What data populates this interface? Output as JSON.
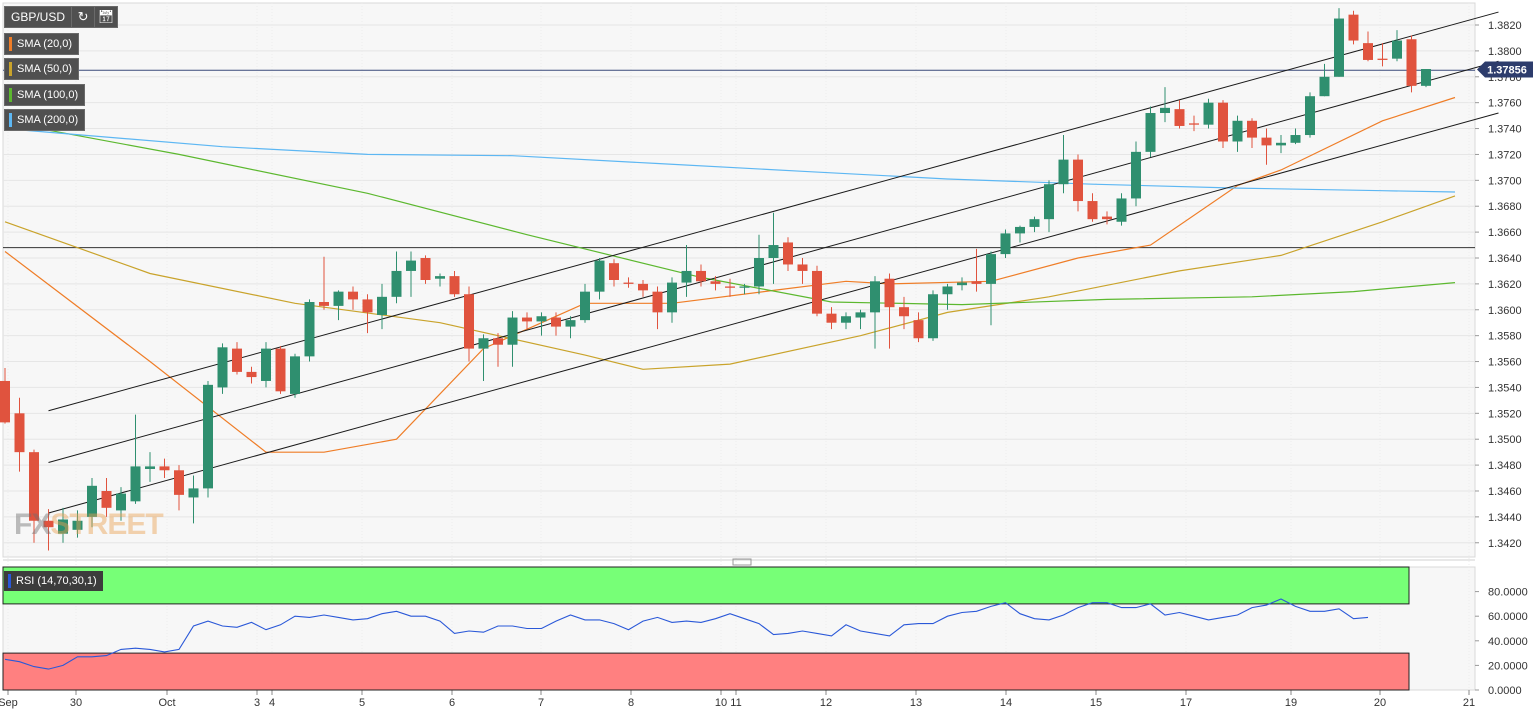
{
  "toolbar": {
    "symbol": "GBP/USD",
    "refresh_icon": "refresh-icon",
    "calendar_icon": "calendar-icon"
  },
  "indicators": [
    {
      "label": "SMA (20,0)",
      "color": "#ef7d27"
    },
    {
      "label": "SMA (50,0)",
      "color": "#c9a32b"
    },
    {
      "label": "SMA (100,0)",
      "color": "#5cb82f"
    },
    {
      "label": "SMA (200,0)",
      "color": "#5db7f3"
    }
  ],
  "watermark": {
    "fx": "FX",
    "street": "STREET"
  },
  "price_tag": "1.37856",
  "chart_data": [
    {
      "type": "candlestick",
      "y_ticks": [
        "1.3820",
        "1.3800",
        "1.3780",
        "1.3760",
        "1.3740",
        "1.3720",
        "1.3700",
        "1.3680",
        "1.3660",
        "1.3640",
        "1.3620",
        "1.3600",
        "1.3580",
        "1.3560",
        "1.3540",
        "1.3520",
        "1.3500",
        "1.3480",
        "1.3460",
        "1.3440",
        "1.3420"
      ],
      "ylim": [
        1.3409,
        1.3837
      ],
      "x_labels": [
        "Sep",
        "30",
        "Oct",
        "3",
        "4",
        "5",
        "6",
        "7",
        "8",
        "10",
        "11",
        "12",
        "13",
        "14",
        "15",
        "17",
        "19",
        "20",
        "21"
      ],
      "candles": [
        {
          "o": 1.3545,
          "h": 1.3555,
          "l": 1.3512,
          "c": 1.3513
        },
        {
          "o": 1.352,
          "h": 1.3532,
          "l": 1.3475,
          "c": 1.349
        },
        {
          "o": 1.349,
          "h": 1.3492,
          "l": 1.342,
          "c": 1.3437
        },
        {
          "o": 1.3437,
          "h": 1.3446,
          "l": 1.3414,
          "c": 1.3432
        },
        {
          "o": 1.3427,
          "h": 1.3447,
          "l": 1.342,
          "c": 1.3438
        },
        {
          "o": 1.343,
          "h": 1.3445,
          "l": 1.3424,
          "c": 1.3437
        },
        {
          "o": 1.344,
          "h": 1.347,
          "l": 1.3432,
          "c": 1.3464
        },
        {
          "o": 1.346,
          "h": 1.347,
          "l": 1.344,
          "c": 1.3447
        },
        {
          "o": 1.3445,
          "h": 1.3463,
          "l": 1.3437,
          "c": 1.3458
        },
        {
          "o": 1.3452,
          "h": 1.3519,
          "l": 1.345,
          "c": 1.3479
        },
        {
          "o": 1.3477,
          "h": 1.349,
          "l": 1.3467,
          "c": 1.3479
        },
        {
          "o": 1.3479,
          "h": 1.3485,
          "l": 1.347,
          "c": 1.3476
        },
        {
          "o": 1.3476,
          "h": 1.348,
          "l": 1.3445,
          "c": 1.3457
        },
        {
          "o": 1.3455,
          "h": 1.3472,
          "l": 1.3435,
          "c": 1.3462
        },
        {
          "o": 1.3462,
          "h": 1.3545,
          "l": 1.3455,
          "c": 1.3542
        },
        {
          "o": 1.354,
          "h": 1.3574,
          "l": 1.3535,
          "c": 1.3571
        },
        {
          "o": 1.357,
          "h": 1.3575,
          "l": 1.355,
          "c": 1.3552
        },
        {
          "o": 1.3552,
          "h": 1.3556,
          "l": 1.3543,
          "c": 1.3548
        },
        {
          "o": 1.3545,
          "h": 1.3575,
          "l": 1.354,
          "c": 1.357
        },
        {
          "o": 1.357,
          "h": 1.3572,
          "l": 1.3535,
          "c": 1.3537
        },
        {
          "o": 1.3535,
          "h": 1.3566,
          "l": 1.3532,
          "c": 1.3564
        },
        {
          "o": 1.3564,
          "h": 1.3608,
          "l": 1.356,
          "c": 1.3606
        },
        {
          "o": 1.3606,
          "h": 1.3641,
          "l": 1.36,
          "c": 1.3603
        },
        {
          "o": 1.3603,
          "h": 1.3615,
          "l": 1.3592,
          "c": 1.3614
        },
        {
          "o": 1.3614,
          "h": 1.3618,
          "l": 1.36,
          "c": 1.3608
        },
        {
          "o": 1.3608,
          "h": 1.3612,
          "l": 1.3582,
          "c": 1.3598
        },
        {
          "o": 1.3596,
          "h": 1.362,
          "l": 1.3585,
          "c": 1.361
        },
        {
          "o": 1.361,
          "h": 1.3645,
          "l": 1.3605,
          "c": 1.363
        },
        {
          "o": 1.363,
          "h": 1.3645,
          "l": 1.361,
          "c": 1.3638
        },
        {
          "o": 1.364,
          "h": 1.3642,
          "l": 1.362,
          "c": 1.3623
        },
        {
          "o": 1.3624,
          "h": 1.3628,
          "l": 1.3618,
          "c": 1.3626
        },
        {
          "o": 1.3626,
          "h": 1.363,
          "l": 1.361,
          "c": 1.3612
        },
        {
          "o": 1.3612,
          "h": 1.3618,
          "l": 1.356,
          "c": 1.357
        },
        {
          "o": 1.357,
          "h": 1.3581,
          "l": 1.3545,
          "c": 1.3578
        },
        {
          "o": 1.3578,
          "h": 1.3582,
          "l": 1.3556,
          "c": 1.3573
        },
        {
          "o": 1.3573,
          "h": 1.3599,
          "l": 1.3556,
          "c": 1.3594
        },
        {
          "o": 1.3594,
          "h": 1.3598,
          "l": 1.3585,
          "c": 1.3591
        },
        {
          "o": 1.3591,
          "h": 1.3598,
          "l": 1.358,
          "c": 1.3595
        },
        {
          "o": 1.3594,
          "h": 1.3598,
          "l": 1.358,
          "c": 1.3587
        },
        {
          "o": 1.3587,
          "h": 1.3595,
          "l": 1.3578,
          "c": 1.3592
        },
        {
          "o": 1.3592,
          "h": 1.362,
          "l": 1.359,
          "c": 1.3614
        },
        {
          "o": 1.3614,
          "h": 1.364,
          "l": 1.3608,
          "c": 1.3638
        },
        {
          "o": 1.3636,
          "h": 1.3639,
          "l": 1.3618,
          "c": 1.3623
        },
        {
          "o": 1.3621,
          "h": 1.3625,
          "l": 1.3617,
          "c": 1.362
        },
        {
          "o": 1.362,
          "h": 1.3623,
          "l": 1.361,
          "c": 1.3615
        },
        {
          "o": 1.3614,
          "h": 1.3618,
          "l": 1.3585,
          "c": 1.3598
        },
        {
          "o": 1.3598,
          "h": 1.3625,
          "l": 1.359,
          "c": 1.3621
        },
        {
          "o": 1.3621,
          "h": 1.365,
          "l": 1.361,
          "c": 1.363
        },
        {
          "o": 1.363,
          "h": 1.3635,
          "l": 1.3618,
          "c": 1.3622
        },
        {
          "o": 1.3622,
          "h": 1.3626,
          "l": 1.3615,
          "c": 1.362
        },
        {
          "o": 1.3618,
          "h": 1.3624,
          "l": 1.361,
          "c": 1.3617
        },
        {
          "o": 1.3617,
          "h": 1.362,
          "l": 1.3612,
          "c": 1.3618
        },
        {
          "o": 1.3618,
          "h": 1.3658,
          "l": 1.3612,
          "c": 1.364
        },
        {
          "o": 1.364,
          "h": 1.3675,
          "l": 1.362,
          "c": 1.365
        },
        {
          "o": 1.3652,
          "h": 1.3656,
          "l": 1.363,
          "c": 1.3635
        },
        {
          "o": 1.3635,
          "h": 1.364,
          "l": 1.362,
          "c": 1.363
        },
        {
          "o": 1.363,
          "h": 1.3634,
          "l": 1.3595,
          "c": 1.3597
        },
        {
          "o": 1.3597,
          "h": 1.3602,
          "l": 1.3585,
          "c": 1.359
        },
        {
          "o": 1.359,
          "h": 1.3598,
          "l": 1.3585,
          "c": 1.3595
        },
        {
          "o": 1.3594,
          "h": 1.36,
          "l": 1.3585,
          "c": 1.3598
        },
        {
          "o": 1.3598,
          "h": 1.3626,
          "l": 1.357,
          "c": 1.3622
        },
        {
          "o": 1.3624,
          "h": 1.3628,
          "l": 1.357,
          "c": 1.3602
        },
        {
          "o": 1.3602,
          "h": 1.361,
          "l": 1.3585,
          "c": 1.3595
        },
        {
          "o": 1.3592,
          "h": 1.3598,
          "l": 1.3575,
          "c": 1.3578
        },
        {
          "o": 1.3578,
          "h": 1.3615,
          "l": 1.3576,
          "c": 1.3612
        },
        {
          "o": 1.3612,
          "h": 1.362,
          "l": 1.36,
          "c": 1.3618
        },
        {
          "o": 1.3619,
          "h": 1.3625,
          "l": 1.3615,
          "c": 1.3621
        },
        {
          "o": 1.3622,
          "h": 1.3647,
          "l": 1.3614,
          "c": 1.362
        },
        {
          "o": 1.362,
          "h": 1.3645,
          "l": 1.3588,
          "c": 1.3643
        },
        {
          "o": 1.3643,
          "h": 1.3662,
          "l": 1.364,
          "c": 1.3659
        },
        {
          "o": 1.3659,
          "h": 1.3665,
          "l": 1.3652,
          "c": 1.3664
        },
        {
          "o": 1.3664,
          "h": 1.3672,
          "l": 1.366,
          "c": 1.367
        },
        {
          "o": 1.367,
          "h": 1.37,
          "l": 1.366,
          "c": 1.3697
        },
        {
          "o": 1.3697,
          "h": 1.3735,
          "l": 1.369,
          "c": 1.3716
        },
        {
          "o": 1.3716,
          "h": 1.372,
          "l": 1.3676,
          "c": 1.3684
        },
        {
          "o": 1.3684,
          "h": 1.369,
          "l": 1.3668,
          "c": 1.367
        },
        {
          "o": 1.3672,
          "h": 1.3676,
          "l": 1.3666,
          "c": 1.367
        },
        {
          "o": 1.3668,
          "h": 1.369,
          "l": 1.3665,
          "c": 1.3686
        },
        {
          "o": 1.3686,
          "h": 1.373,
          "l": 1.368,
          "c": 1.3722
        },
        {
          "o": 1.3722,
          "h": 1.3757,
          "l": 1.3718,
          "c": 1.3752
        },
        {
          "o": 1.3752,
          "h": 1.3772,
          "l": 1.3745,
          "c": 1.3756
        },
        {
          "o": 1.3755,
          "h": 1.3762,
          "l": 1.374,
          "c": 1.3742
        },
        {
          "o": 1.3744,
          "h": 1.375,
          "l": 1.3738,
          "c": 1.3743
        },
        {
          "o": 1.3743,
          "h": 1.3763,
          "l": 1.374,
          "c": 1.376
        },
        {
          "o": 1.376,
          "h": 1.3762,
          "l": 1.3725,
          "c": 1.373
        },
        {
          "o": 1.373,
          "h": 1.375,
          "l": 1.3722,
          "c": 1.3746
        },
        {
          "o": 1.3746,
          "h": 1.3748,
          "l": 1.3725,
          "c": 1.3733
        },
        {
          "o": 1.3733,
          "h": 1.374,
          "l": 1.3712,
          "c": 1.3727
        },
        {
          "o": 1.3727,
          "h": 1.3735,
          "l": 1.3721,
          "c": 1.3729
        },
        {
          "o": 1.3729,
          "h": 1.374,
          "l": 1.3728,
          "c": 1.3735
        },
        {
          "o": 1.3735,
          "h": 1.3768,
          "l": 1.3733,
          "c": 1.3765
        },
        {
          "o": 1.3765,
          "h": 1.379,
          "l": 1.3765,
          "c": 1.378
        },
        {
          "o": 1.378,
          "h": 1.3833,
          "l": 1.378,
          "c": 1.3825
        },
        {
          "o": 1.3828,
          "h": 1.3831,
          "l": 1.3805,
          "c": 1.3808
        },
        {
          "o": 1.3806,
          "h": 1.3815,
          "l": 1.3792,
          "c": 1.3793
        },
        {
          "o": 1.3794,
          "h": 1.3806,
          "l": 1.3788,
          "c": 1.3793
        },
        {
          "o": 1.3794,
          "h": 1.3816,
          "l": 1.3792,
          "c": 1.3808
        },
        {
          "o": 1.3809,
          "h": 1.3812,
          "l": 1.3768,
          "c": 1.3773
        },
        {
          "o": 1.3773,
          "h": 1.3786,
          "l": 1.3772,
          "c": 1.3786
        }
      ],
      "sma": [
        {
          "name": "SMA (20,0)",
          "color": "#ef7d27",
          "points": [
            [
              0,
              1.3645
            ],
            [
              10,
              1.356
            ],
            [
              18,
              1.349
            ],
            [
              22,
              1.349
            ],
            [
              27,
              1.35
            ],
            [
              33,
              1.357
            ],
            [
              40,
              1.3605
            ],
            [
              46,
              1.3605
            ],
            [
              53,
              1.3615
            ],
            [
              58,
              1.3622
            ],
            [
              61,
              1.362
            ],
            [
              68,
              1.3622
            ],
            [
              74,
              1.364
            ],
            [
              79,
              1.365
            ],
            [
              85,
              1.3696
            ],
            [
              88,
              1.3708
            ],
            [
              95,
              1.3746
            ],
            [
              100,
              1.3764
            ]
          ]
        },
        {
          "name": "SMA (50,0)",
          "color": "#c9a32b",
          "points": [
            [
              0,
              1.3668
            ],
            [
              10,
              1.3628
            ],
            [
              20,
              1.3605
            ],
            [
              30,
              1.359
            ],
            [
              40,
              1.3565
            ],
            [
              44,
              1.3554
            ],
            [
              50,
              1.3558
            ],
            [
              59,
              1.358
            ],
            [
              65,
              1.3598
            ],
            [
              72,
              1.361
            ],
            [
              81,
              1.363
            ],
            [
              88,
              1.3642
            ],
            [
              95,
              1.3668
            ],
            [
              100,
              1.3688
            ]
          ]
        },
        {
          "name": "SMA (100,0)",
          "color": "#5cb82f",
          "points": [
            [
              0,
              1.3745
            ],
            [
              12,
              1.372
            ],
            [
              25,
              1.369
            ],
            [
              36,
              1.3658
            ],
            [
              48,
              1.3625
            ],
            [
              57,
              1.3606
            ],
            [
              66,
              1.3604
            ],
            [
              76,
              1.3608
            ],
            [
              86,
              1.361
            ],
            [
              93,
              1.3614
            ],
            [
              100,
              1.3621
            ]
          ]
        },
        {
          "name": "SMA (200,0)",
          "color": "#5db7f3",
          "points": [
            [
              0,
              1.374
            ],
            [
              15,
              1.3726
            ],
            [
              25,
              1.372
            ],
            [
              35,
              1.3719
            ],
            [
              45,
              1.3713
            ],
            [
              55,
              1.3707
            ],
            [
              65,
              1.3701
            ],
            [
              75,
              1.3697
            ],
            [
              85,
              1.3694
            ],
            [
              95,
              1.3692
            ],
            [
              100,
              1.3691
            ]
          ]
        }
      ],
      "channel_lines": [
        {
          "from": [
            3,
            1.3522
          ],
          "to": [
            103,
            1.383
          ]
        },
        {
          "from": [
            3,
            1.3482
          ],
          "to": [
            103,
            1.3792
          ]
        },
        {
          "from": [
            3,
            1.3443
          ],
          "to": [
            103,
            1.3752
          ]
        }
      ],
      "horizontal_lines": [
        1.3785,
        1.3648
      ],
      "current_price": 1.37856
    },
    {
      "type": "line",
      "title": "RSI (14,70,30,1)",
      "y_ticks": [
        "80.0000",
        "60.0000",
        "40.0000",
        "20.0000",
        "0.0000"
      ],
      "ylim": [
        0,
        100
      ],
      "zones": [
        {
          "from": 70,
          "to": 100,
          "color": "#77ff77"
        },
        {
          "from": 0,
          "to": 30,
          "color": "#ff8080"
        }
      ],
      "values": [
        25,
        23,
        19,
        17,
        20,
        27,
        27,
        28,
        33,
        34,
        33,
        31,
        33,
        52,
        56,
        52,
        51,
        55,
        49,
        53,
        60,
        59,
        61,
        59,
        57,
        58,
        62,
        64,
        60,
        60,
        56,
        46,
        48,
        47,
        52,
        52,
        50,
        50,
        56,
        61,
        57,
        57,
        54,
        49,
        56,
        59,
        55,
        56,
        55,
        58,
        62,
        58,
        54,
        45,
        46,
        48,
        46,
        44,
        53,
        48,
        46,
        44,
        53,
        54,
        54,
        60,
        63,
        64,
        68,
        71,
        62,
        58,
        57,
        61,
        67,
        71,
        71,
        67,
        67,
        70,
        61,
        63,
        60,
        57,
        59,
        61,
        67,
        69,
        74,
        68,
        64,
        64,
        66,
        58,
        59
      ]
    }
  ]
}
